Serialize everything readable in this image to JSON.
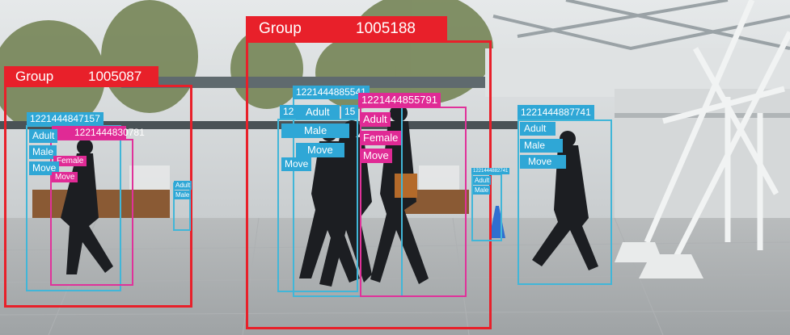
{
  "colors": {
    "group_box": "#e8202a",
    "male_box": "#41b6d8",
    "female_box": "#e0329a"
  },
  "groups": [
    {
      "label": "Group",
      "id": "1005087"
    },
    {
      "label": "Group",
      "id": "1005188"
    }
  ],
  "tags": {
    "id_a": "1221444847157",
    "id_b": "1221444830781",
    "adult": "Adult",
    "male": "Male",
    "female": "Female",
    "move": "Move",
    "id_c": "1221444885541",
    "id_c_partial": "12",
    "id_c_partial2": "15",
    "id_d": "1221444855791",
    "id_e": "1221444887741",
    "id_small": "1221444882741"
  }
}
